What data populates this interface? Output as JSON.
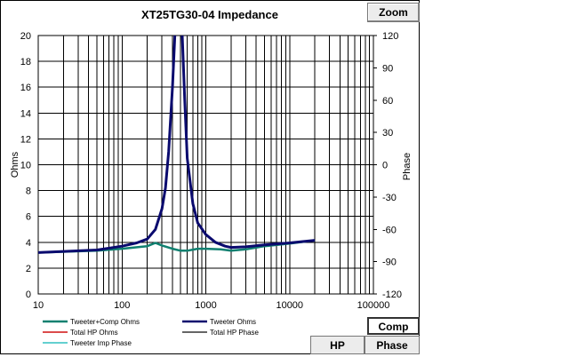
{
  "window": {
    "zoom_label": "Zoom"
  },
  "buttons": {
    "comp": "Comp",
    "hp": "HP",
    "phase": "Phase"
  },
  "chart_data": {
    "type": "line",
    "title": "XT25TG30-04   Impedance",
    "xlabel": "",
    "ylabel": "Ohms",
    "y2label": "Phase",
    "xscale": "log",
    "xlim": [
      10,
      100000
    ],
    "ylim": [
      0,
      20
    ],
    "y2lim": [
      -120,
      120
    ],
    "grid": true,
    "x_ticks": [
      "10",
      "100",
      "1000",
      "10000",
      "100000"
    ],
    "y_ticks": [
      "0",
      "2",
      "4",
      "6",
      "8",
      "10",
      "12",
      "14",
      "16",
      "18",
      "20"
    ],
    "y2_ticks": [
      "-120",
      "-90",
      "-60",
      "-30",
      "0",
      "30",
      "60",
      "90",
      "120"
    ],
    "legend_placement": "bottom",
    "series": [
      {
        "name": "Tweeter+Comp Ohms",
        "color": "#108070",
        "x": [
          10,
          50,
          100,
          170,
          200,
          250,
          300,
          400,
          500,
          600,
          800,
          1000,
          1500,
          2000,
          3000,
          5000,
          10000,
          20000
        ],
        "y": [
          3.2,
          3.35,
          3.5,
          3.65,
          3.7,
          3.95,
          3.75,
          3.5,
          3.35,
          3.35,
          3.5,
          3.5,
          3.45,
          3.35,
          3.45,
          3.7,
          3.9,
          4.15
        ]
      },
      {
        "name": "Tweeter Ohms",
        "color": "#0a0a6e",
        "x": [
          10,
          50,
          100,
          150,
          200,
          250,
          300,
          330,
          360,
          400,
          430,
          460,
          480,
          500,
          520,
          560,
          600,
          700,
          800,
          1000,
          1300,
          1700,
          2000,
          3000,
          5000,
          10000,
          20000
        ],
        "y": [
          3.2,
          3.4,
          3.7,
          3.95,
          4.25,
          5.0,
          6.6,
          8.2,
          11.0,
          16.0,
          20.5,
          22.0,
          23.0,
          22.0,
          20.5,
          15.0,
          10.5,
          7.0,
          5.5,
          4.6,
          4.0,
          3.7,
          3.6,
          3.65,
          3.8,
          3.95,
          4.15
        ]
      },
      {
        "name": "Total HP Ohms",
        "color": "#d01010",
        "x": [],
        "y": []
      },
      {
        "name": "Total HP Phase",
        "color": "#333333",
        "x": [],
        "y": []
      },
      {
        "name": "Tweeter Imp Phase",
        "color": "#30c0c0",
        "x": [],
        "y": []
      }
    ]
  }
}
